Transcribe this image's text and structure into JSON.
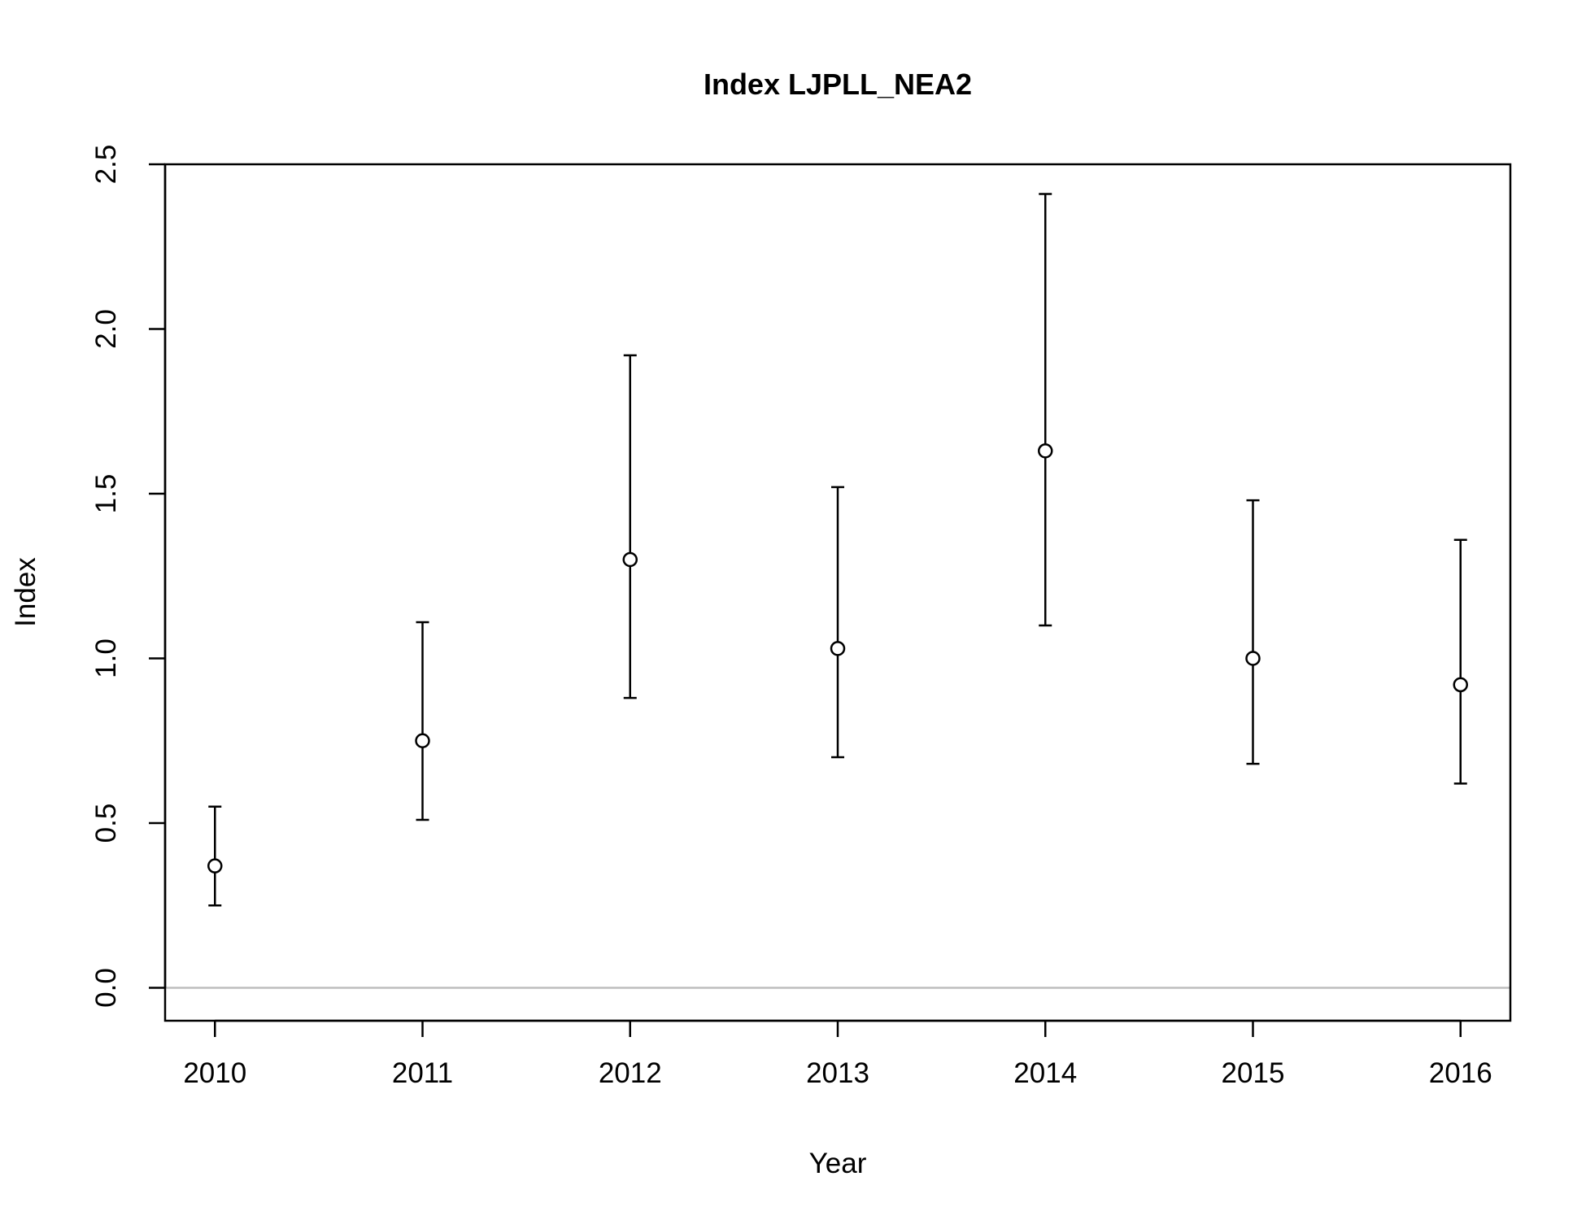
{
  "chart_data": {
    "type": "scatter",
    "title": "Index LJPLL_NEA2",
    "xlabel": "Year",
    "ylabel": "Index",
    "x": [
      2010,
      2011,
      2012,
      2013,
      2014,
      2015,
      2016
    ],
    "y": [
      0.37,
      0.75,
      1.3,
      1.03,
      1.63,
      1.0,
      0.92
    ],
    "lower": [
      0.25,
      0.51,
      0.88,
      0.7,
      1.1,
      0.68,
      0.62
    ],
    "upper": [
      0.55,
      1.11,
      1.92,
      1.52,
      2.41,
      1.48,
      1.36
    ],
    "xlim": [
      2009.76,
      2016.24
    ],
    "ylim": [
      -0.1,
      2.5
    ],
    "x_ticks": [
      "2010",
      "2011",
      "2012",
      "2013",
      "2014",
      "2015",
      "2016"
    ],
    "y_ticks": [
      "0.0",
      "0.5",
      "1.0",
      "1.5",
      "2.0",
      "2.5"
    ],
    "reference_line_y": 0,
    "reference_line_color": "#bebebe",
    "marker": "open-circle",
    "grid": false,
    "legend": "none"
  }
}
